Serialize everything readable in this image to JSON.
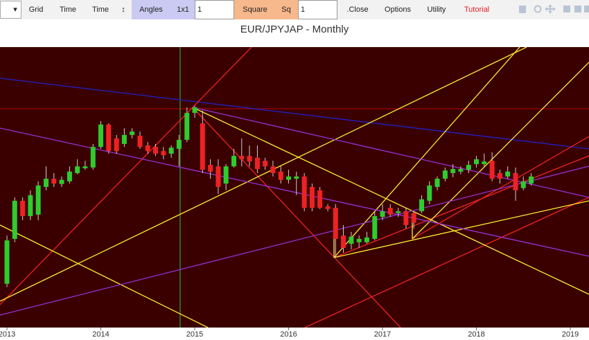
{
  "toolbar": {
    "dropdown": "▾",
    "grid": "Grid",
    "time1": "Time",
    "time2": "Time",
    "updown": "↕",
    "angles": "Angles",
    "ratio": "1x1",
    "angles_input": "1",
    "square": "Square",
    "sq": "Sq",
    "sq_input": "1",
    "close": ".Close",
    "options": "Options",
    "utility": "Utility",
    "tutorial": "Tutorial"
  },
  "chart_data": {
    "type": "candlestick",
    "title": "EUR/JPYJAP - Monthly",
    "x": [
      2013,
      2013.083,
      2013.167,
      2013.25,
      2013.333,
      2013.417,
      2013.5,
      2013.583,
      2013.667,
      2013.75,
      2013.833,
      2013.917,
      2014,
      2014.083,
      2014.167,
      2014.25,
      2014.333,
      2014.417,
      2014.5,
      2014.583,
      2014.667,
      2014.75,
      2014.833,
      2014.917,
      2015,
      2015.083,
      2015.167,
      2015.25,
      2015.333,
      2015.417,
      2015.5,
      2015.583,
      2015.667,
      2015.75,
      2015.833,
      2015.917,
      2016,
      2016.083,
      2016.167,
      2016.25,
      2016.333,
      2016.417,
      2016.5,
      2016.583,
      2016.667,
      2016.75,
      2016.833,
      2016.917,
      2017,
      2017.083,
      2017.167,
      2017.25,
      2017.333,
      2017.417,
      2017.5,
      2017.583,
      2017.667,
      2017.75,
      2017.833,
      2017.917,
      2018,
      2018.083,
      2018.167,
      2018.25,
      2018.333,
      2018.417,
      2018.5,
      2018.583
    ],
    "open": [
      102.7,
      114.7,
      124.9,
      120.8,
      121.2,
      128.6,
      130.8,
      129.4,
      130.1,
      132.3,
      133.6,
      133.8,
      139.3,
      145.3,
      141.6,
      140.1,
      142.5,
      142.3,
      139.7,
      139.3,
      138.2,
      137.5,
      138.8,
      141.2,
      148.4,
      145.6,
      134.5,
      134.1,
      129.5,
      134.1,
      136.9,
      136.9,
      136.4,
      135.6,
      134.1,
      132.7,
      130.5,
      130.8,
      131.4,
      128.6,
      127.7,
      123.4,
      123.0,
      115.6,
      113.4,
      113.8,
      113.8,
      114.7,
      120.6,
      123.0,
      121.6,
      122.1,
      121.6,
      122.1,
      124.9,
      128.6,
      130.8,
      132.3,
      132.7,
      133.2,
      134.7,
      134.7,
      135.6,
      132.3,
      131.4,
      132.3,
      128.3,
      129.5
    ],
    "high": [
      115.6,
      125.8,
      125.8,
      127.7,
      130.1,
      134.1,
      132.3,
      131.4,
      134.1,
      136.0,
      135.6,
      140.1,
      146.2,
      145.6,
      142.5,
      144.3,
      144.3,
      143.4,
      140.6,
      140.1,
      139.3,
      139.7,
      142.5,
      149.9,
      150.3,
      149.0,
      136.0,
      136.0,
      134.7,
      138.8,
      141.6,
      139.7,
      139.7,
      136.4,
      135.6,
      134.1,
      133.2,
      132.7,
      132.3,
      129.5,
      128.6,
      124.0,
      124.0,
      118.4,
      116.6,
      115.6,
      116.6,
      122.1,
      124.0,
      124.0,
      123.0,
      123.0,
      122.1,
      126.4,
      130.1,
      131.4,
      133.8,
      134.7,
      134.1,
      135.6,
      136.9,
      137.5,
      137.9,
      133.2,
      134.1,
      133.8,
      131.4,
      132.3
    ],
    "low": [
      101.8,
      113.8,
      119.7,
      119.7,
      119.7,
      127.7,
      128.6,
      128.6,
      129.5,
      132.0,
      133.2,
      133.2,
      138.8,
      137.5,
      137.5,
      139.3,
      141.6,
      138.8,
      137.5,
      136.9,
      136.0,
      136.4,
      134.1,
      140.6,
      147.1,
      132.3,
      130.8,
      126.7,
      127.7,
      133.8,
      134.1,
      134.1,
      132.3,
      133.2,
      131.4,
      129.5,
      129.5,
      126.4,
      122.1,
      122.1,
      122.7,
      122.1,
      109.7,
      111.0,
      111.9,
      112.3,
      113.4,
      114.3,
      119.7,
      120.6,
      120.6,
      117.5,
      117.5,
      121.6,
      124.0,
      127.7,
      130.1,
      131.2,
      132.0,
      132.3,
      133.8,
      134.1,
      130.1,
      129.5,
      130.8,
      124.9,
      127.7,
      129.0
    ],
    "close": [
      114.3,
      124.9,
      120.8,
      126.4,
      129.0,
      130.8,
      129.5,
      130.5,
      132.7,
      134.1,
      134.1,
      139.3,
      145.3,
      138.2,
      138.2,
      142.5,
      143.4,
      139.3,
      138.2,
      137.5,
      137.1,
      139.1,
      141.2,
      148.4,
      149.9,
      133.2,
      132.7,
      128.6,
      134.1,
      136.9,
      136.0,
      135.4,
      133.4,
      134.1,
      132.3,
      130.5,
      131.4,
      131.4,
      123.0,
      123.0,
      123.0,
      122.7,
      114.7,
      112.3,
      115.3,
      114.7,
      115.1,
      120.8,
      122.1,
      121.2,
      122.1,
      118.4,
      119.0,
      125.3,
      129.0,
      130.8,
      133.0,
      133.4,
      133.4,
      134.5,
      136.0,
      135.4,
      130.8,
      130.8,
      132.7,
      127.7,
      130.1,
      131.4
    ],
    "up_color": "#2ecc2e",
    "down_color": "#ee2222",
    "xlim": [
      2012.926,
      2019.199
    ],
    "xticks": [
      2013,
      2014,
      2015,
      2016,
      2017,
      2018,
      2019
    ],
    "ylim": [
      91,
      166
    ],
    "grid": false
  }
}
